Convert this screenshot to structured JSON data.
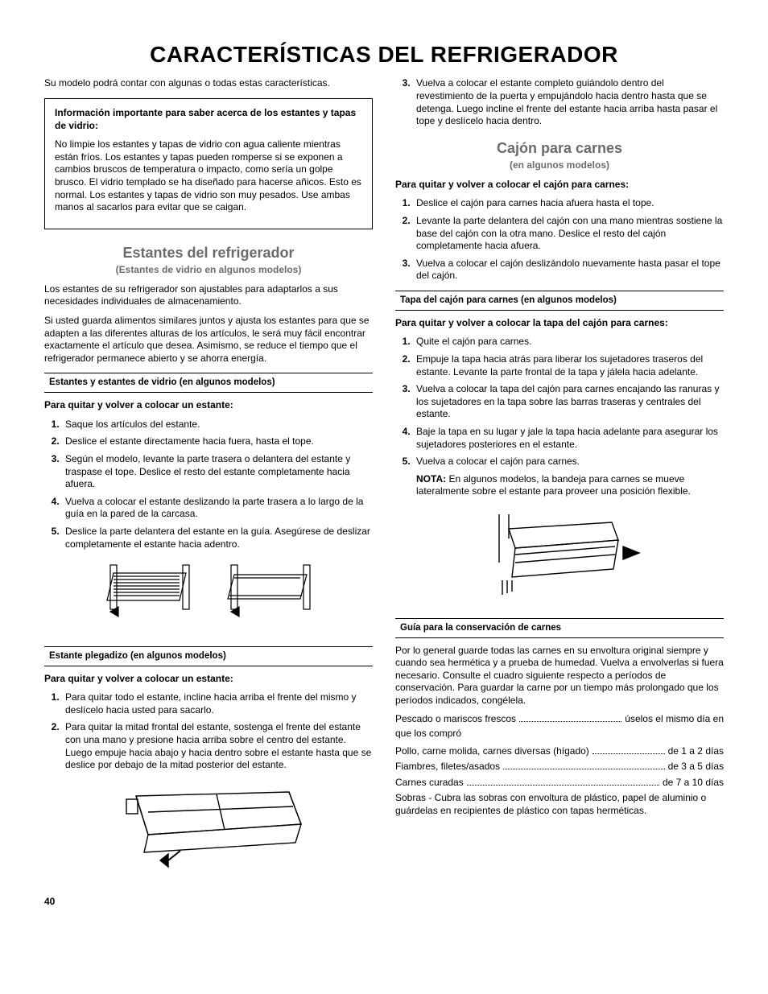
{
  "title": "CARACTERÍSTICAS DEL REFRIGERADOR",
  "intro": "Su modelo podrá contar con algunas o todas estas características.",
  "info_box": {
    "title": "Información importante para saber acerca de los estantes y tapas de vidrio:",
    "body": "No limpie los estantes y tapas de vidrio con agua caliente mientras están fríos. Los estantes y tapas pueden romperse si se exponen a cambios bruscos de temperatura o impacto, como sería un golpe brusco. El vidrio templado se ha diseñado para hacerse añicos. Esto es normal. Los estantes y tapas de vidrio son muy pesados. Use ambas manos al sacarlos para evitar que se caigan."
  },
  "shelves": {
    "title": "Estantes del refrigerador",
    "subtitle": "(Estantes de vidrio en algunos modelos)",
    "p1": "Los estantes de su refrigerador son ajustables para adaptarlos a sus necesidades individuales de almacenamiento.",
    "p2": "Si usted guarda alimentos similares juntos y ajusta los estantes para que se adapten a las diferentes alturas de los artículos, le será muy fácil encontrar exactamente el artículo que desea. Asimismo, se reduce el tiempo que el refrigerador permanece abierto y se ahorra energía.",
    "sub1": "Estantes y estantes de vidrio (en algunos modelos)",
    "proc1_title": "Para quitar y volver a colocar un estante:",
    "proc1": [
      "Saque los artículos del estante.",
      "Deslice el estante directamente hacia fuera, hasta el tope.",
      "Según el modelo, levante la parte trasera o delantera del estante y traspase el tope. Deslice el resto del estante completamente hacia afuera.",
      "Vuelva a colocar el estante deslizando la parte trasera a lo largo de la guía en la pared de la carcasa.",
      "Deslice la parte delantera del estante en la guía. Asegúrese de deslizar completamente el estante hacia adentro."
    ],
    "sub2": "Estante plegadizo (en algunos modelos)",
    "proc2_title": "Para quitar y volver a colocar un estante:",
    "proc2": [
      "Para quitar todo el estante, incline hacia arriba el frente del mismo y deslícelo hacia usted para sacarlo.",
      "Para quitar la mitad frontal del estante, sostenga el frente del estante con una mano y presione hacia arriba sobre el centro del estante. Luego empuje hacia abajo y hacia dentro sobre el estante hasta que se deslice por debajo de la mitad posterior del estante."
    ],
    "proc2_step3": "Vuelva a colocar el estante completo guiándolo dentro del revestimiento de la puerta y empujándolo hacia dentro hasta que se detenga. Luego incline el frente del estante hacia arriba hasta pasar el tope y deslícelo hacia dentro."
  },
  "meat": {
    "title": "Cajón para carnes",
    "subtitle": "(en algunos modelos)",
    "proc1_title": "Para quitar y volver a colocar el cajón para carnes:",
    "proc1": [
      "Deslice el cajón para carnes hacia afuera hasta el tope.",
      "Levante la parte delantera del cajón con una mano mientras sostiene la base del cajón con la otra mano. Deslice el resto del cajón completamente hacia afuera.",
      "Vuelva a colocar el cajón deslizándolo nuevamente hasta pasar el tope del cajón."
    ],
    "sub_cover": "Tapa del cajón para carnes (en algunos modelos)",
    "proc2_title": "Para quitar y volver a colocar la tapa del cajón para carnes:",
    "proc2": [
      "Quite el cajón para carnes.",
      "Empuje la tapa hacia atrás para liberar los sujetadores traseros del estante. Levante la parte frontal de la tapa y jálela hacia adelante.",
      "Vuelva a colocar la tapa del cajón para carnes encajando las ranuras y los sujetadores en la tapa sobre las barras traseras y centrales del estante.",
      "Baje la tapa en su lugar y jale la tapa hacia adelante para asegurar los sujetadores posteriores en el estante.",
      "Vuelva a colocar el cajón para carnes."
    ],
    "note_label": "NOTA:",
    "note": "En algunos modelos, la bandeja para carnes se mueve lateralmente sobre el estante para proveer una posición flexible.",
    "sub_guide": "Guía para la conservación de carnes",
    "guide_intro": "Por lo general guarde todas las carnes en su envoltura original siempre y cuando sea hermética y a prueba de humedad. Vuelva a envolverlas si fuera necesario. Consulte el cuadro siguiente respecto a períodos de conservación. Para guardar la carne por un tiempo más prolongado que los períodos indicados, congélela.",
    "storage": [
      {
        "label": "Pescado o mariscos frescos",
        "val": "úselos el mismo día en que los compró",
        "wrap": true
      },
      {
        "label": "Pollo, carne molida, carnes diversas (hígado)",
        "val": "de 1 a 2 días"
      },
      {
        "label": "Fiambres, filetes/asados",
        "val": "de 3 a 5 días"
      },
      {
        "label": "Carnes curadas",
        "val": "de 7 a 10 días"
      }
    ],
    "leftovers": "Sobras - Cubra las sobras con envoltura de plástico, papel de aluminio o guárdelas en recipientes de plástico con tapas herméticas."
  },
  "page_number": "40"
}
